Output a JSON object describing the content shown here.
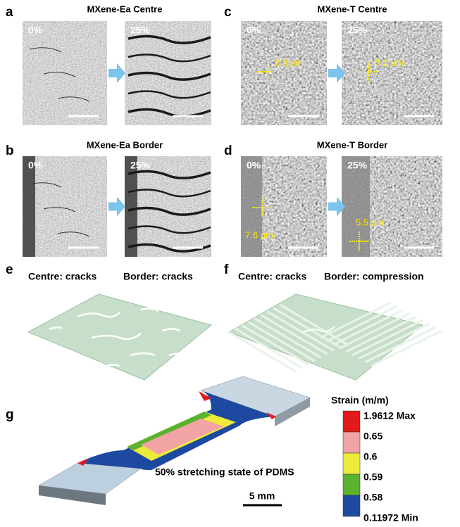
{
  "panels": [
    {
      "letter": "a",
      "title": "MXene-Ea Centre",
      "images": [
        {
          "label": "0%"
        },
        {
          "label": "25%"
        }
      ]
    },
    {
      "letter": "b",
      "title": "MXene-Ea Border",
      "images": [
        {
          "label": "0%"
        },
        {
          "label": "25%"
        }
      ]
    },
    {
      "letter": "c",
      "title": "MXene-T Centre",
      "images": [
        {
          "label": "0%",
          "measurement": "2.3 μm"
        },
        {
          "label": "25%",
          "measurement": "5.2 μm"
        }
      ]
    },
    {
      "letter": "d",
      "title": "MXene-T Border",
      "images": [
        {
          "label": "0%",
          "measurement": "7.6 μm"
        },
        {
          "label": "25%",
          "measurement": "5.5 μm"
        }
      ]
    },
    {
      "letter": "e",
      "captions": [
        "Centre: cracks",
        "Border: cracks"
      ]
    },
    {
      "letter": "f",
      "captions": [
        "Centre: cracks",
        "Border: compression"
      ]
    },
    {
      "letter": "g",
      "legend_title": "Strain (m/m)",
      "legend_labels": [
        "1.9612 Max",
        "0.65",
        "0.6",
        "0.59",
        "0.58",
        "0.11972 Min"
      ],
      "legend_colors": [
        "#e3191c",
        "#f2a3a3",
        "#eeea3a",
        "#5bb22e",
        "#1d4aa0"
      ],
      "caption": "50% stretching state of PDMS",
      "scale_bar": "5 mm"
    }
  ]
}
